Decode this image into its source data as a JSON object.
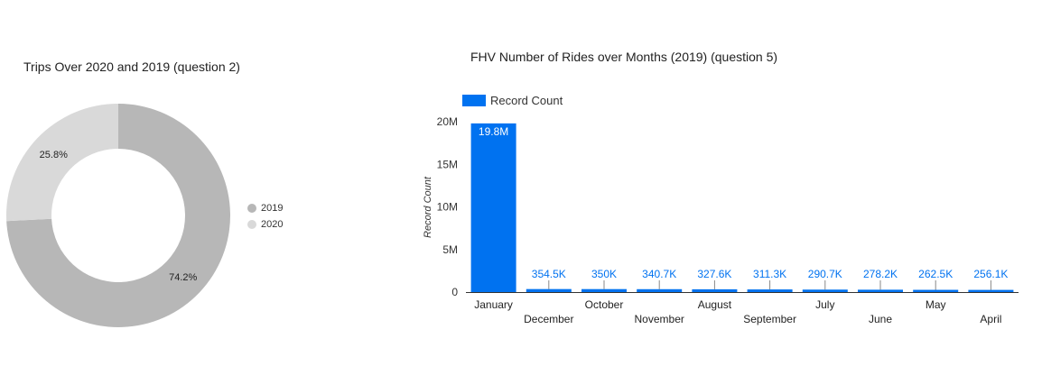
{
  "chart_data": [
    {
      "type": "pie",
      "donut": true,
      "title": "Trips Over 2020 and 2019 (question 2)",
      "labels": [
        "2019",
        "2020"
      ],
      "values": [
        74.2,
        25.8
      ],
      "value_labels": [
        "74.2%",
        "25.8%"
      ],
      "colors": [
        "#b7b7b7",
        "#d9d9d9"
      ],
      "legend_position": "right"
    },
    {
      "type": "bar",
      "title": "FHV Number of Rides over Months (2019) (question 5)",
      "categories": [
        "January",
        "December",
        "October",
        "November",
        "August",
        "September",
        "July",
        "June",
        "May",
        "April"
      ],
      "series": [
        {
          "name": "Record Count",
          "values": [
            19800000,
            354500,
            350000,
            340700,
            327600,
            311300,
            290700,
            278200,
            262500,
            256100
          ],
          "value_labels": [
            "19.8M",
            "354.5K",
            "350K",
            "340.7K",
            "327.6K",
            "311.3K",
            "290.7K",
            "278.2K",
            "262.5K",
            "256.1K"
          ],
          "color": "#0072f0"
        }
      ],
      "xlabel": "",
      "ylabel": "Record Count",
      "ylim": [
        0,
        20000000
      ],
      "yticks": [
        0,
        5000000,
        10000000,
        15000000,
        20000000
      ],
      "ytick_labels": [
        "0",
        "5M",
        "10M",
        "15M",
        "20M"
      ],
      "legend_position": "top-left",
      "grid": false
    }
  ]
}
